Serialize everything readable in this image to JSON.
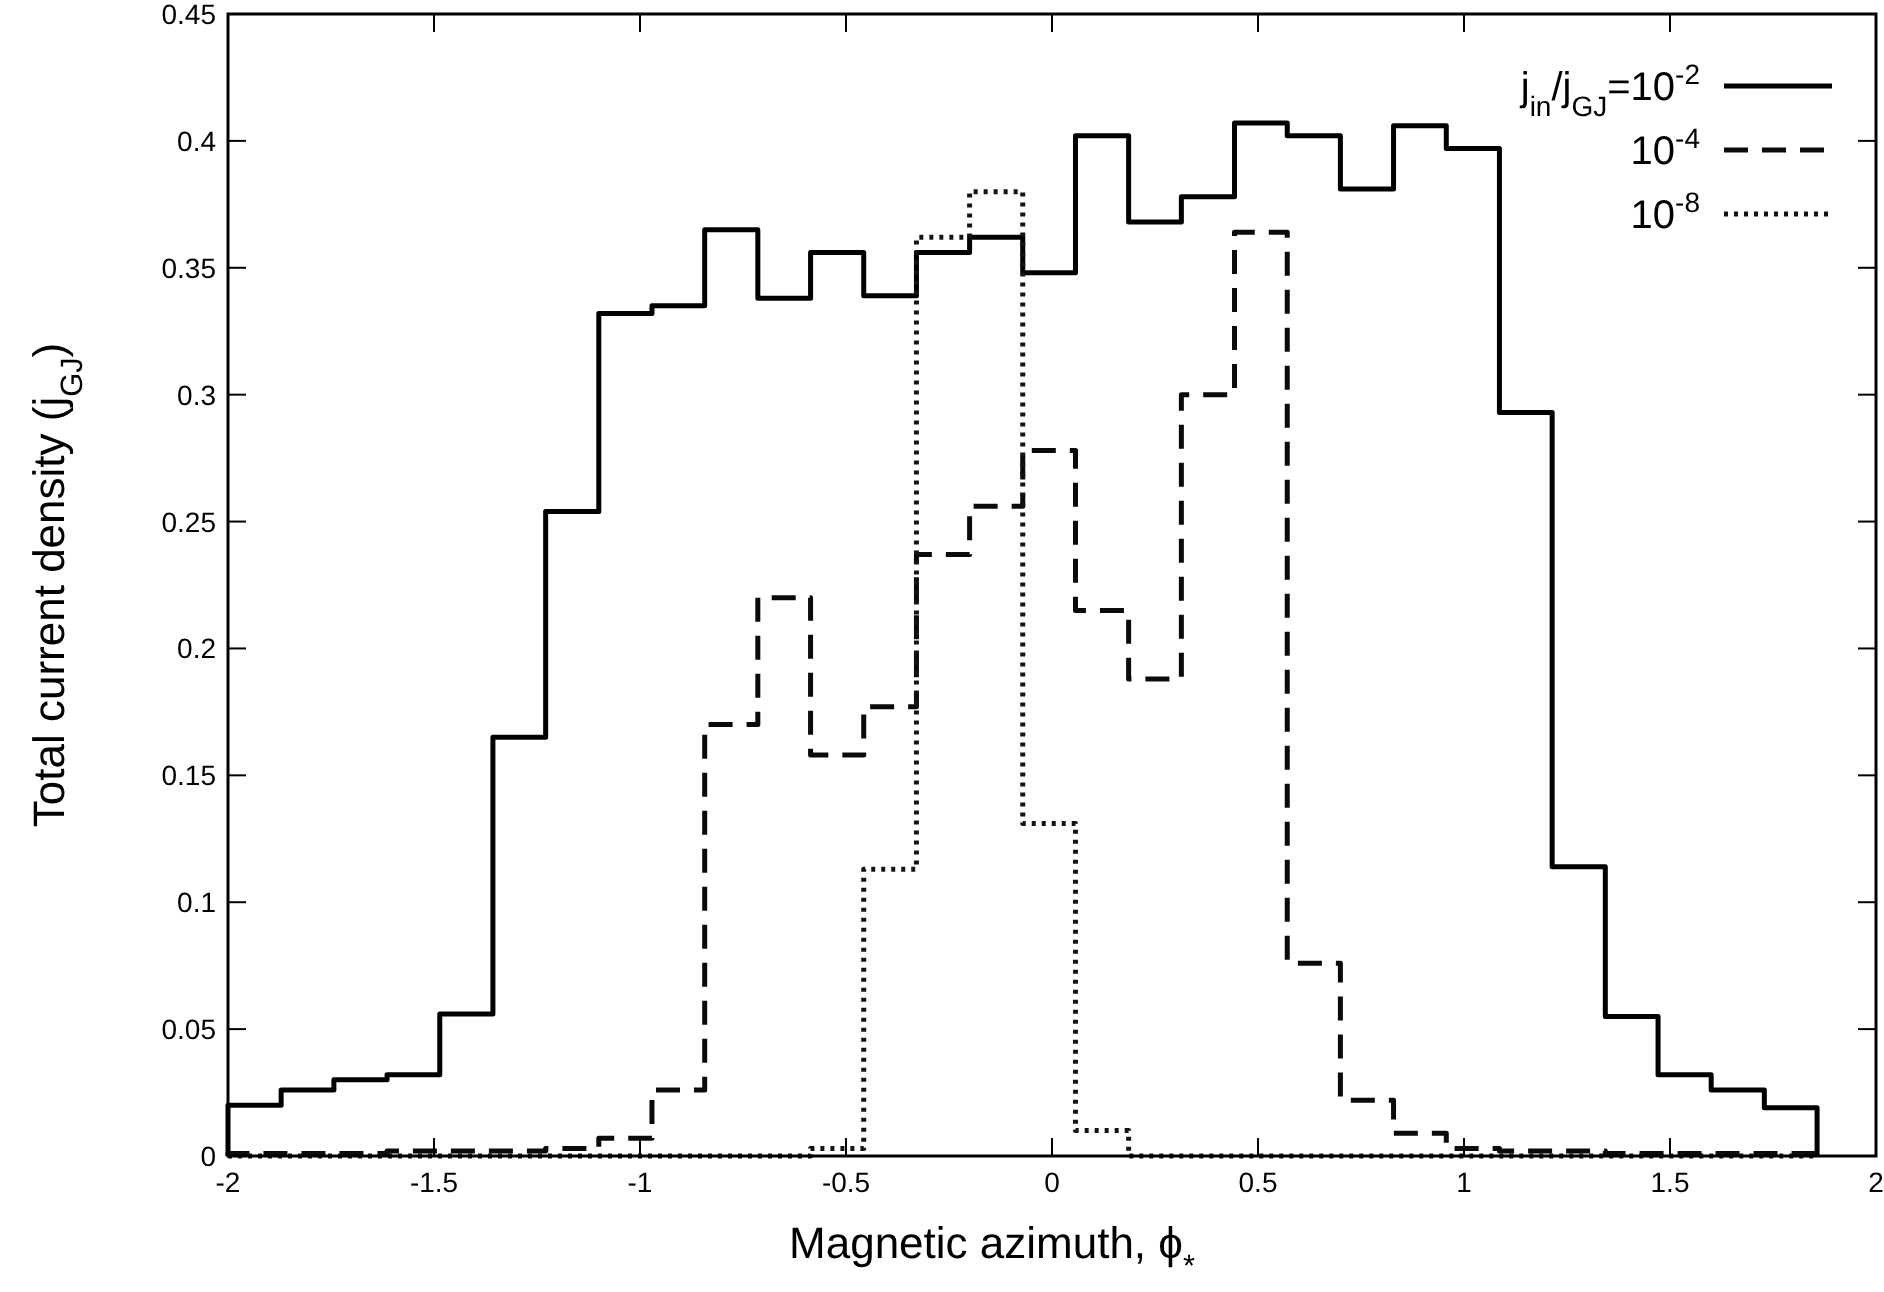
{
  "chart_data": {
    "type": "histogram",
    "xlabel": "Magnetic azimuth, ϕ$_{*}$",
    "ylabel": "Total current density (j$_{GJ}$)",
    "bins": [
      -2,
      -1.871,
      -1.743,
      -1.614,
      -1.486,
      -1.357,
      -1.229,
      -1.1,
      -0.971,
      -0.843,
      -0.714,
      -0.586,
      -0.457,
      -0.329,
      -0.2,
      -0.071,
      0.057,
      0.186,
      0.314,
      0.443,
      0.571,
      0.7,
      0.829,
      0.957,
      1.086,
      1.214,
      1.343,
      1.471,
      1.6,
      1.729,
      1.857
    ],
    "series": [
      {
        "name": "j$_{in}$/j$_{GJ}$=10$^{-2}$",
        "color": "#000000",
        "line_style": "solid",
        "values": [
          0.02,
          0.026,
          0.03,
          0.032,
          0.056,
          0.165,
          0.254,
          0.332,
          0.335,
          0.365,
          0.338,
          0.356,
          0.339,
          0.356,
          0.362,
          0.348,
          0.402,
          0.368,
          0.378,
          0.407,
          0.402,
          0.381,
          0.406,
          0.397,
          0.293,
          0.114,
          0.055,
          0.032,
          0.026,
          0.019
        ]
      },
      {
        "name": "10$^{-4}$",
        "color": "#0a0a0a",
        "line_style": "dashed",
        "values": [
          0.001,
          0.001,
          0.001,
          0.002,
          0.002,
          0.002,
          0.003,
          0.007,
          0.026,
          0.17,
          0.22,
          0.158,
          0.177,
          0.237,
          0.256,
          0.278,
          0.215,
          0.188,
          0.3,
          0.364,
          0.076,
          0.022,
          0.009,
          0.003,
          0.002,
          0.002,
          0.001,
          0.001,
          0.001,
          0.001
        ]
      },
      {
        "name": "10$^{-8}$",
        "color": "#141414",
        "line_style": "dotted",
        "values": [
          0,
          0,
          0,
          0,
          0,
          0,
          0,
          0,
          0,
          0,
          0,
          0.003,
          0.113,
          0.362,
          0.38,
          0.131,
          0.01,
          0,
          0,
          0,
          0,
          0,
          0,
          0,
          0,
          0,
          0,
          0,
          0,
          0
        ]
      }
    ],
    "xlim": [
      -2,
      2
    ],
    "xticks": [
      -2,
      -1.5,
      -1,
      -0.5,
      0,
      0.5,
      1,
      1.5,
      2
    ],
    "ylim": [
      0,
      0.45
    ],
    "yticks": [
      0,
      0.05,
      0.1,
      0.15,
      0.2,
      0.25,
      0.3,
      0.35,
      0.4,
      0.45
    ],
    "grid": false,
    "legend": "top right"
  }
}
